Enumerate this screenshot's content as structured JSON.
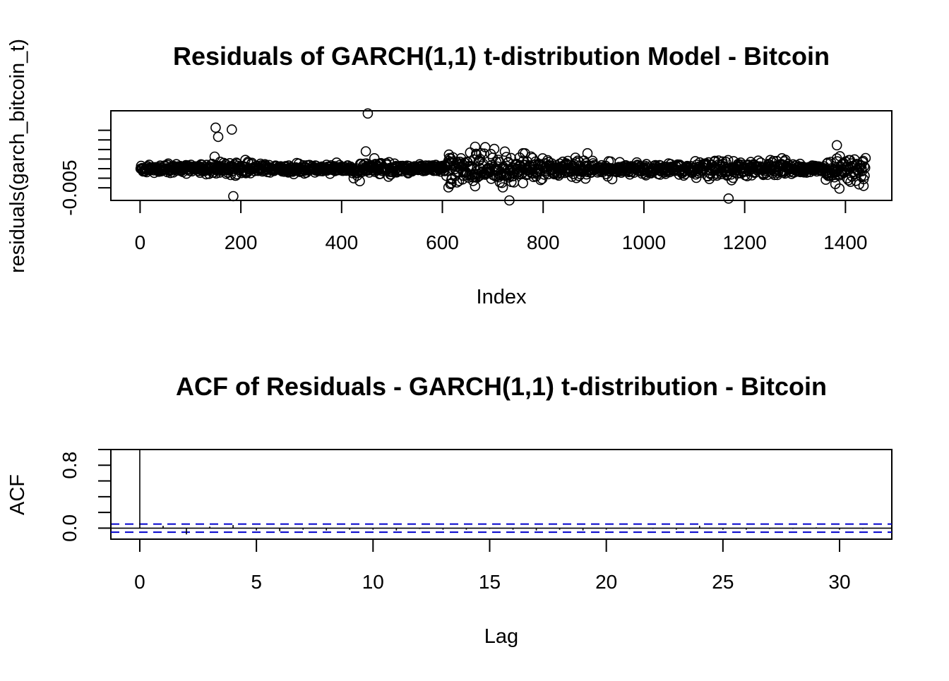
{
  "chart_data": [
    {
      "type": "scatter",
      "title": "Residuals of GARCH(1,1) t-distribution Model - Bitcoin",
      "xlabel": "Index",
      "ylabel": "residuals(garch_bitcoin_t)",
      "xlim": [
        -58,
        1492
      ],
      "ylim": [
        -0.0083,
        0.0151
      ],
      "xticks": [
        0,
        200,
        400,
        600,
        800,
        1000,
        1200,
        1400
      ],
      "xtick_labels": [
        "0",
        "200",
        "400",
        "600",
        "800",
        "1000",
        "1200",
        "1400"
      ],
      "yticks": [
        -0.005,
        0.0,
        0.005,
        0.01
      ],
      "ytick_labels": [
        "-0.005",
        "",
        "",
        ""
      ],
      "y_minor_ticks": [
        -0.0025,
        0.0025,
        0.0075
      ],
      "marker": "open-circle",
      "n_points": 1440,
      "points": [
        [
          150,
          0.0107
        ],
        [
          155,
          0.0083
        ],
        [
          182,
          0.0102
        ],
        [
          452,
          0.0144
        ],
        [
          448,
          0.0045
        ],
        [
          665,
          0.0057
        ],
        [
          685,
          0.0056
        ],
        [
          1383,
          0.0061
        ],
        [
          888,
          0.004
        ],
        [
          760,
          0.004
        ],
        [
          185,
          -0.0072
        ],
        [
          1168,
          -0.0078
        ],
        [
          733,
          -0.0083
        ],
        [
          612,
          -0.0049
        ],
        [
          618,
          -0.0038
        ],
        [
          665,
          -0.0046
        ],
        [
          720,
          -0.0049
        ],
        [
          1380,
          -0.004
        ],
        [
          1388,
          -0.0052
        ],
        [
          1436,
          -0.0045
        ]
      ]
    },
    {
      "type": "bar",
      "title": "ACF of Residuals - GARCH(1,1) t-distribution - Bitcoin",
      "xlabel": "Lag",
      "ylabel": "ACF",
      "xlim": [
        -1.24,
        32.24
      ],
      "ylim": [
        -0.14,
        1.0
      ],
      "xticks": [
        0,
        5,
        10,
        15,
        20,
        25,
        30
      ],
      "yticks": [
        0.0,
        0.2,
        0.4,
        0.6,
        0.8,
        1.0
      ],
      "ytick_labels": [
        "0.0",
        "",
        "",
        "",
        "0.8",
        ""
      ],
      "lags": [
        0,
        1,
        2,
        3,
        4,
        5,
        6,
        7,
        8,
        9,
        10,
        11,
        12,
        13,
        14,
        15,
        16,
        17,
        18,
        19,
        20,
        21,
        22,
        23,
        24,
        25,
        26,
        27,
        28,
        29,
        30,
        31
      ],
      "values": [
        1.0,
        0.03,
        -0.08,
        0.02,
        0.04,
        -0.03,
        -0.04,
        -0.02,
        -0.03,
        -0.02,
        -0.02,
        -0.03,
        -0.01,
        -0.02,
        -0.02,
        -0.01,
        -0.02,
        -0.03,
        -0.02,
        -0.03,
        -0.02,
        -0.01,
        -0.01,
        -0.02,
        0.03,
        -0.02,
        -0.02,
        -0.01,
        -0.01,
        0.01,
        -0.02,
        -0.01
      ],
      "confidence_bound": 0.0516,
      "colors": {
        "confidence": "#0000cc",
        "bars": "#000000"
      }
    }
  ]
}
